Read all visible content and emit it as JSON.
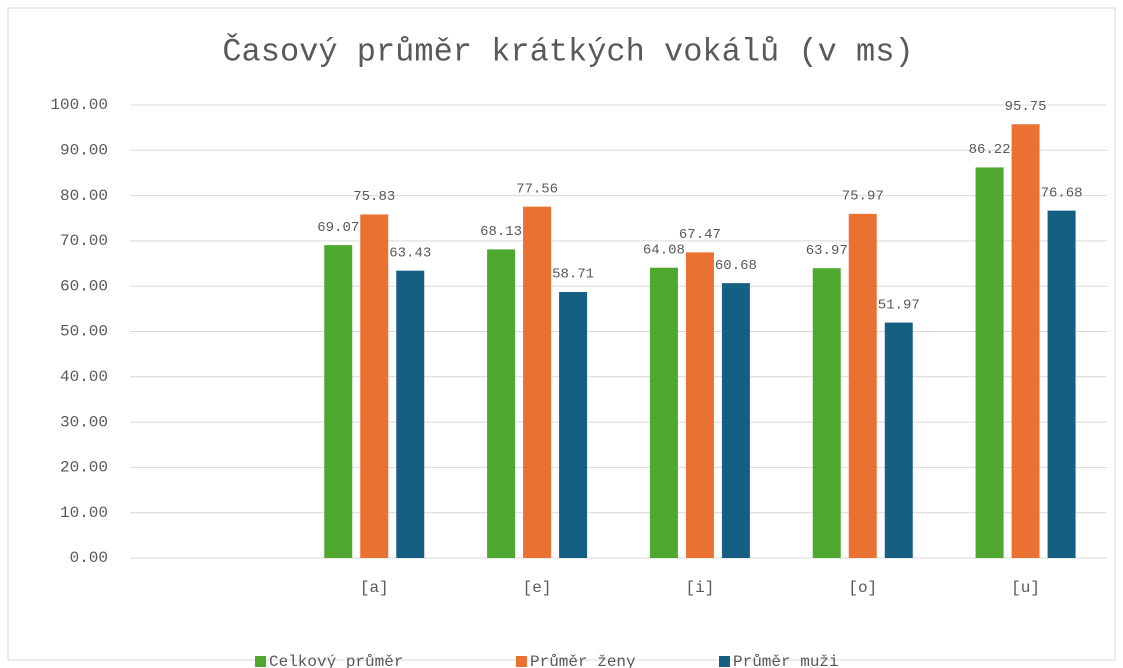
{
  "chart_data": {
    "type": "bar",
    "title": "Časový průměr krátkých vokálů (v ms)",
    "categories": [
      null,
      "[a]",
      "[e]",
      "[i]",
      "[o]",
      "[u]"
    ],
    "series": [
      {
        "name": "Celkový průměr",
        "color": "#4ea72e",
        "values": [
          null,
          69.07,
          68.13,
          64.08,
          63.97,
          86.22
        ]
      },
      {
        "name": "Průměr ženy",
        "color": "#e97132",
        "values": [
          null,
          75.83,
          77.56,
          67.47,
          75.97,
          95.75
        ]
      },
      {
        "name": "Průměr muži",
        "color": "#156082",
        "values": [
          null,
          63.43,
          58.71,
          60.68,
          51.97,
          76.68
        ]
      }
    ],
    "ylim": [
      0,
      100
    ],
    "yticks": [
      {
        "value": 0,
        "label": "0.00"
      },
      {
        "value": 10,
        "label": "10.00"
      },
      {
        "value": 20,
        "label": "20.00"
      },
      {
        "value": 30,
        "label": "30.00"
      },
      {
        "value": 40,
        "label": "40.00"
      },
      {
        "value": 50,
        "label": "50.00"
      },
      {
        "value": 60,
        "label": "60.00"
      },
      {
        "value": 70,
        "label": "70.00"
      },
      {
        "value": 80,
        "label": "80.00"
      },
      {
        "value": 90,
        "label": "90.00"
      },
      {
        "value": 100,
        "label": "100.00"
      }
    ],
    "grid": true,
    "legend": "bottom"
  }
}
